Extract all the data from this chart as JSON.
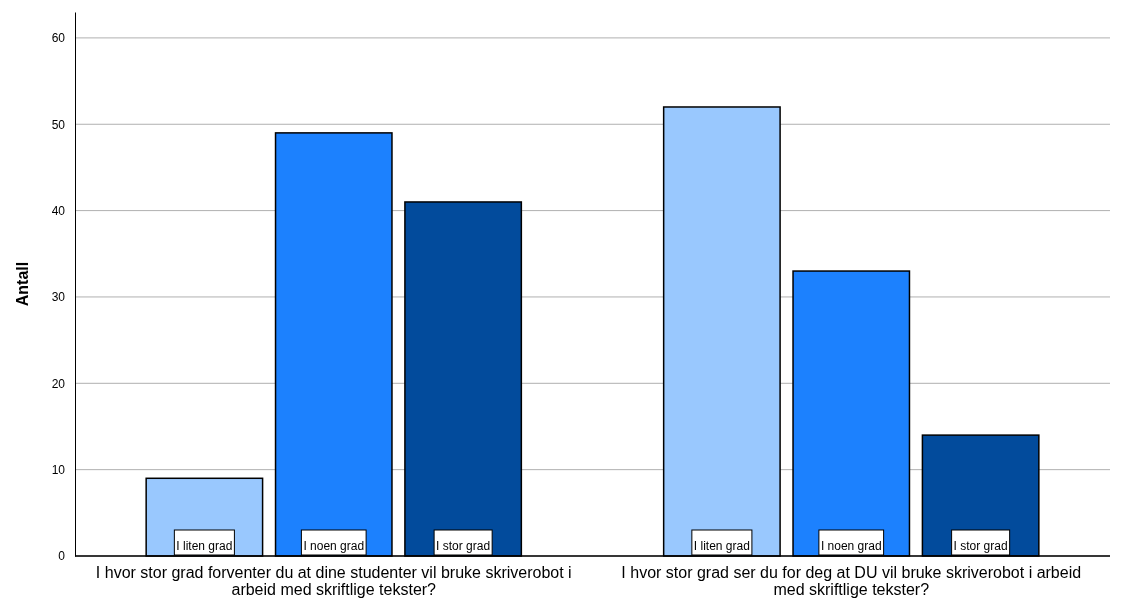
{
  "chart_data": {
    "type": "bar",
    "ylabel": "Antall",
    "categories": [
      "I hvor stor grad forventer du at dine studenter vil bruke skriverobot i arbeid med skriftlige tekster?",
      "I hvor stor grad ser du for deg at DU vil bruke skriverobot i arbeid med skriftlige tekster?"
    ],
    "series": [
      {
        "name": "I liten grad",
        "color": "#99c8fe",
        "values": [
          9,
          52
        ]
      },
      {
        "name": "I noen grad",
        "color": "#1c81fe",
        "values": [
          49,
          33
        ]
      },
      {
        "name": "I stor grad",
        "color": "#024b9c",
        "values": [
          41,
          14
        ]
      }
    ],
    "ylim": [
      0,
      63
    ],
    "yticks": [
      0,
      10,
      20,
      30,
      40,
      50,
      60
    ],
    "grid": "y"
  }
}
